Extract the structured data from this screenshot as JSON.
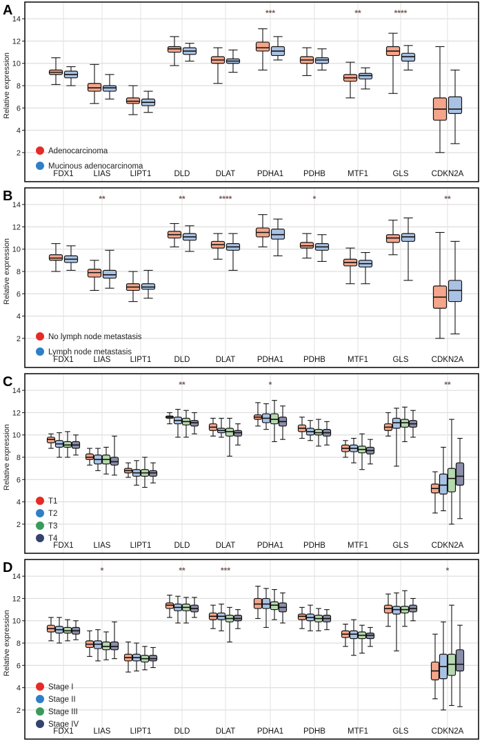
{
  "figure": {
    "ylabel": "Relative expression",
    "genes": [
      "FDX1",
      "LIAS",
      "LIPT1",
      "DLD",
      "DLAT",
      "PDHA1",
      "PDHB",
      "MTF1",
      "GLS",
      "CDKN2A"
    ]
  },
  "chart_data": [
    {
      "type": "boxplot",
      "panel_label": "A",
      "ylabel": "Relative expression",
      "ylim": [
        1,
        15
      ],
      "yticks": [
        2,
        4,
        6,
        8,
        10,
        12,
        14
      ],
      "grid": true,
      "categories": [
        "FDX1",
        "LIAS",
        "LIPT1",
        "DLD",
        "DLAT",
        "PDHA1",
        "PDHB",
        "MTF1",
        "GLS",
        "CDKN2A"
      ],
      "significance": [
        "",
        "",
        "",
        "",
        "",
        "***",
        "",
        "**",
        "****",
        ""
      ],
      "series": [
        {
          "name": "Adenocarcinoma",
          "color": "#f4a58a",
          "dot_color": "#e62a26",
          "stats": [
            [
              8.1,
              9,
              9.2,
              9.4,
              10.5
            ],
            [
              6.4,
              7.5,
              7.8,
              8.2,
              9.9
            ],
            [
              5.4,
              6.4,
              6.6,
              6.9,
              8
            ],
            [
              9.8,
              11,
              11.3,
              11.5,
              12.4
            ],
            [
              8.2,
              10,
              10.3,
              10.6,
              11.4
            ],
            [
              9.4,
              11.1,
              11.4,
              11.9,
              13.1
            ],
            [
              8.9,
              10,
              10.3,
              10.6,
              11.4
            ],
            [
              6.9,
              8.4,
              8.7,
              9,
              10.1
            ],
            [
              7.3,
              10.7,
              11.1,
              11.5,
              12.7
            ],
            [
              2,
              4.9,
              5.9,
              6.9,
              11.5
            ]
          ]
        },
        {
          "name": "Mucinous adenocarcinoma",
          "color": "#a9c2e4",
          "dot_color": "#2e7fc5",
          "stats": [
            [
              8,
              8.7,
              9,
              9.3,
              9.7
            ],
            [
              6.8,
              7.5,
              7.8,
              8,
              9
            ],
            [
              5.6,
              6.2,
              6.5,
              6.8,
              7.5
            ],
            [
              10.2,
              10.8,
              11.1,
              11.4,
              11.8
            ],
            [
              9.2,
              10,
              10.2,
              10.4,
              11.2
            ],
            [
              10.3,
              10.7,
              11.1,
              11.5,
              12.4
            ],
            [
              9.4,
              10,
              10.3,
              10.5,
              11.3
            ],
            [
              7.7,
              8.6,
              8.9,
              9.1,
              9.6
            ],
            [
              9.4,
              10.2,
              10.6,
              10.9,
              11.6
            ],
            [
              2.8,
              5.5,
              5.9,
              7,
              9.4
            ]
          ]
        }
      ]
    },
    {
      "type": "boxplot",
      "panel_label": "B",
      "ylabel": "Relative expression",
      "ylim": [
        1,
        15
      ],
      "yticks": [
        2,
        4,
        6,
        8,
        10,
        12,
        14
      ],
      "grid": true,
      "categories": [
        "FDX1",
        "LIAS",
        "LIPT1",
        "DLD",
        "DLAT",
        "PDHA1",
        "PDHB",
        "MTF1",
        "GLS",
        "CDKN2A"
      ],
      "significance": [
        "",
        "**",
        "",
        "**",
        "****",
        "",
        "*",
        "",
        "",
        "**"
      ],
      "series": [
        {
          "name": "No lymph node metastasis",
          "color": "#f4a58a",
          "dot_color": "#e62a26",
          "stats": [
            [
              8,
              9,
              9.2,
              9.5,
              10.5
            ],
            [
              6.3,
              7.5,
              7.9,
              8.2,
              9
            ],
            [
              5.3,
              6.3,
              6.6,
              6.9,
              8
            ],
            [
              10.2,
              11,
              11.3,
              11.6,
              12.3
            ],
            [
              9.1,
              10.1,
              10.4,
              10.7,
              11.4
            ],
            [
              10.2,
              11.1,
              11.5,
              11.9,
              13.1
            ],
            [
              9.2,
              10.1,
              10.3,
              10.6,
              11.4
            ],
            [
              6.9,
              8.5,
              8.8,
              9.1,
              10.1
            ],
            [
              9.5,
              10.6,
              11,
              11.3,
              12.6
            ],
            [
              2,
              4.7,
              5.7,
              6.7,
              11.5
            ]
          ]
        },
        {
          "name": "Lymph node metastasis",
          "color": "#a9c2e4",
          "dot_color": "#2e7fc5",
          "stats": [
            [
              8.1,
              8.8,
              9.1,
              9.4,
              10.3
            ],
            [
              6.5,
              7.4,
              7.7,
              8.1,
              9.9
            ],
            [
              5.6,
              6.4,
              6.6,
              6.9,
              8.1
            ],
            [
              9.8,
              10.8,
              11.1,
              11.4,
              12.1
            ],
            [
              8.1,
              9.9,
              10.2,
              10.5,
              11.4
            ],
            [
              9.4,
              10.9,
              11.3,
              11.8,
              12.7
            ],
            [
              8.9,
              9.9,
              10.2,
              10.5,
              11.3
            ],
            [
              6.9,
              8.4,
              8.7,
              9,
              9.7
            ],
            [
              7.2,
              10.7,
              11.1,
              11.4,
              12.8
            ],
            [
              2.4,
              5.3,
              6.3,
              7.2,
              10.7
            ]
          ]
        }
      ]
    },
    {
      "type": "boxplot",
      "panel_label": "C",
      "ylabel": "Relative expression",
      "ylim": [
        1,
        15
      ],
      "yticks": [
        2,
        4,
        6,
        8,
        10,
        12,
        14
      ],
      "grid": true,
      "categories": [
        "FDX1",
        "LIAS",
        "LIPT1",
        "DLD",
        "DLAT",
        "PDHA1",
        "PDHB",
        "MTF1",
        "GLS",
        "CDKN2A"
      ],
      "significance": [
        "",
        "",
        "",
        "**",
        "",
        "*",
        "",
        "",
        "",
        "**"
      ],
      "series": [
        {
          "name": "T1",
          "color": "#f4a58a",
          "dot_color": "#e62a26",
          "stats": [
            [
              8.8,
              9.3,
              9.6,
              9.8,
              10.1
            ],
            [
              7.3,
              7.8,
              8,
              8.3,
              8.8
            ],
            [
              6.2,
              6.6,
              6.8,
              7,
              7.5
            ],
            [
              11,
              11.5,
              11.6,
              11.7,
              12
            ],
            [
              9.9,
              10.4,
              10.7,
              11,
              11.5
            ],
            [
              10.8,
              11.4,
              11.6,
              11.8,
              12.9
            ],
            [
              9.7,
              10.3,
              10.6,
              10.9,
              11.6
            ],
            [
              8,
              8.5,
              8.8,
              9.1,
              9.5
            ],
            [
              9.9,
              10.4,
              10.7,
              11,
              12
            ],
            [
              3,
              4.8,
              5.2,
              5.6,
              6.7
            ]
          ]
        },
        {
          "name": "T2",
          "color": "#a9c2e4",
          "dot_color": "#2e7fc5",
          "stats": [
            [
              8,
              8.9,
              9.2,
              9.5,
              10.2
            ],
            [
              6.8,
              7.4,
              7.8,
              8.2,
              8.8
            ],
            [
              5.5,
              6.3,
              6.6,
              6.9,
              7.7
            ],
            [
              9.8,
              11,
              11.3,
              11.6,
              12.3
            ],
            [
              9.8,
              10.2,
              10.4,
              10.6,
              11.5
            ],
            [
              10.5,
              11.1,
              11.5,
              11.9,
              12.8
            ],
            [
              9.5,
              10,
              10.3,
              10.6,
              11.3
            ],
            [
              7.5,
              8.5,
              8.8,
              9.1,
              9.7
            ],
            [
              7.2,
              10.6,
              11.1,
              11.5,
              12.4
            ],
            [
              3.2,
              4.7,
              5.5,
              6.5,
              8.9
            ]
          ]
        },
        {
          "name": "T3",
          "color": "#b5d9ae",
          "dot_color": "#3a9a5c",
          "stats": [
            [
              8,
              8.9,
              9.1,
              9.4,
              10.3
            ],
            [
              6.5,
              7.4,
              7.8,
              8.2,
              8.9
            ],
            [
              5.3,
              6.3,
              6.6,
              6.9,
              8
            ],
            [
              9.8,
              10.9,
              11.2,
              11.5,
              12.2
            ],
            [
              8.1,
              9.9,
              10.3,
              10.6,
              11.5
            ],
            [
              9.4,
              11,
              11.4,
              11.9,
              13.1
            ],
            [
              9,
              10,
              10.2,
              10.5,
              11.4
            ],
            [
              6.9,
              8.4,
              8.7,
              9,
              10.1
            ],
            [
              9.4,
              10.7,
              11.1,
              11.4,
              12.5
            ],
            [
              2,
              4.9,
              6.1,
              7,
              11.4
            ]
          ]
        },
        {
          "name": "T4",
          "color": "#8b8ea8",
          "dot_color": "#34436e",
          "stats": [
            [
              8.2,
              8.8,
              9.1,
              9.4,
              10
            ],
            [
              6.4,
              7.3,
              7.6,
              8,
              9.9
            ],
            [
              5.7,
              6.3,
              6.6,
              6.8,
              7.5
            ],
            [
              10.1,
              10.8,
              11.1,
              11.3,
              12
            ],
            [
              9.1,
              9.9,
              10.2,
              10.4,
              11
            ],
            [
              9.6,
              10.8,
              11.2,
              11.6,
              12.6
            ],
            [
              9.1,
              9.9,
              10.2,
              10.5,
              11.2
            ],
            [
              7.4,
              8.3,
              8.6,
              8.9,
              9.6
            ],
            [
              9.8,
              10.7,
              11,
              11.3,
              12.2
            ],
            [
              2.5,
              5.5,
              6.3,
              7.5,
              9.7
            ]
          ]
        }
      ]
    },
    {
      "type": "boxplot",
      "panel_label": "D",
      "ylabel": "Relative expression",
      "ylim": [
        1,
        15
      ],
      "yticks": [
        2,
        4,
        6,
        8,
        10,
        12,
        14
      ],
      "grid": true,
      "categories": [
        "FDX1",
        "LIAS",
        "LIPT1",
        "DLD",
        "DLAT",
        "PDHA1",
        "PDHB",
        "MTF1",
        "GLS",
        "CDKN2A"
      ],
      "significance": [
        "",
        "*",
        "",
        "**",
        "***",
        "",
        "",
        "",
        "",
        "*"
      ],
      "series": [
        {
          "name": "Stage I",
          "color": "#f4a58a",
          "dot_color": "#e62a26",
          "stats": [
            [
              8.2,
              9,
              9.3,
              9.6,
              10.3
            ],
            [
              6.8,
              7.6,
              7.9,
              8.2,
              9.1
            ],
            [
              5.4,
              6.4,
              6.7,
              7,
              8.1
            ],
            [
              10.3,
              11.1,
              11.4,
              11.6,
              12.3
            ],
            [
              9.3,
              10.1,
              10.4,
              10.7,
              11.4
            ],
            [
              10.2,
              11.1,
              11.5,
              12,
              13.1
            ],
            [
              9.3,
              10.1,
              10.4,
              10.6,
              11.2
            ],
            [
              7.7,
              8.5,
              8.8,
              9.1,
              9.7
            ],
            [
              9.5,
              10.7,
              11.1,
              11.4,
              12.4
            ],
            [
              3,
              4.7,
              5.5,
              6.3,
              8.8
            ]
          ]
        },
        {
          "name": "Stage II",
          "color": "#a9c2e4",
          "dot_color": "#2e7fc5",
          "stats": [
            [
              8,
              8.9,
              9.2,
              9.5,
              10.3
            ],
            [
              6.4,
              7.5,
              7.9,
              8.2,
              9.2
            ],
            [
              5.5,
              6.4,
              6.7,
              7,
              8
            ],
            [
              9.8,
              10.9,
              11.2,
              11.5,
              12.2
            ],
            [
              9.1,
              10.1,
              10.4,
              10.7,
              11.5
            ],
            [
              9.4,
              11.1,
              11.5,
              12,
              12.9
            ],
            [
              9.1,
              10,
              10.3,
              10.6,
              11.4
            ],
            [
              6.9,
              8.4,
              8.8,
              9.1,
              10.1
            ],
            [
              7.3,
              10.6,
              11,
              11.3,
              12.5
            ],
            [
              2,
              4.8,
              5.9,
              7,
              9.9
            ]
          ]
        },
        {
          "name": "Stage III",
          "color": "#b5d9ae",
          "dot_color": "#3a9a5c",
          "stats": [
            [
              8.2,
              8.9,
              9.1,
              9.4,
              10.1
            ],
            [
              6.5,
              7.4,
              7.7,
              8.1,
              9
            ],
            [
              5.6,
              6.3,
              6.6,
              6.9,
              7.7
            ],
            [
              9.8,
              10.9,
              11.2,
              11.5,
              12.1
            ],
            [
              8.1,
              9.9,
              10.2,
              10.5,
              11.2
            ],
            [
              10.1,
              11,
              11.4,
              11.7,
              12.8
            ],
            [
              9.1,
              9.9,
              10.2,
              10.5,
              11.1
            ],
            [
              7.1,
              8.4,
              8.7,
              9,
              9.6
            ],
            [
              9.5,
              10.7,
              11,
              11.3,
              12.7
            ],
            [
              2.4,
              5.1,
              6.1,
              7,
              11.4
            ]
          ]
        },
        {
          "name": "Stage IV",
          "color": "#8b8ea8",
          "dot_color": "#34436e",
          "stats": [
            [
              8.3,
              8.8,
              9.1,
              9.4,
              10
            ],
            [
              6.6,
              7.4,
              7.7,
              8.1,
              9.9
            ],
            [
              5.8,
              6.4,
              6.6,
              6.9,
              7.6
            ],
            [
              10.3,
              10.8,
              11.1,
              11.4,
              12.1
            ],
            [
              9.3,
              10,
              10.2,
              10.5,
              11
            ],
            [
              9.8,
              10.8,
              11.2,
              11.6,
              12.5
            ],
            [
              9.2,
              9.9,
              10.2,
              10.5,
              11
            ],
            [
              7.7,
              8.4,
              8.7,
              8.9,
              9.4
            ],
            [
              10,
              10.8,
              11.1,
              11.4,
              12
            ],
            [
              2.3,
              5.5,
              6.1,
              7.4,
              9.6
            ]
          ]
        }
      ]
    }
  ]
}
